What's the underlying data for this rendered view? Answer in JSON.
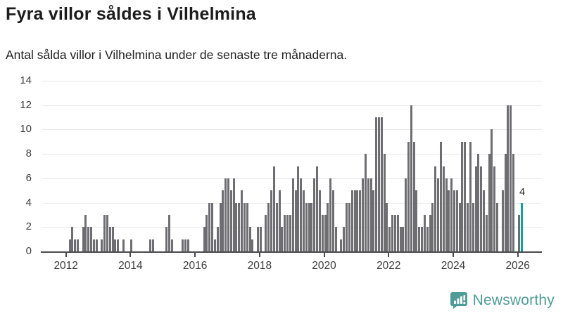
{
  "title": "Fyra villor såldes i Vilhelmina",
  "subtitle": "Antal sålda villor i Vilhelmina under de senaste tre månaderna.",
  "chart_data": {
    "type": "bar",
    "title": "Fyra villor såldes i Vilhelmina",
    "subtitle": "Antal sålda villor i Vilhelmina under de senaste tre månaderna.",
    "x_start": "2012-01",
    "x_end": "2026-02",
    "frequency": "monthly",
    "x_tick_labels": [
      "2012",
      "2014",
      "2016",
      "2018",
      "2020",
      "2022",
      "2024",
      "2026"
    ],
    "y_ticks": [
      0,
      2,
      4,
      6,
      8,
      10,
      12,
      14
    ],
    "ylim": [
      0,
      14
    ],
    "grid": "horizontal",
    "bar_color": "#6e6d72",
    "values": [
      0,
      1,
      2,
      1,
      1,
      0,
      2,
      3,
      2,
      2,
      1,
      1,
      0,
      1,
      3,
      3,
      2,
      2,
      1,
      1,
      0,
      1,
      0,
      0,
      1,
      0,
      0,
      0,
      0,
      0,
      0,
      1,
      1,
      0,
      0,
      0,
      0,
      2,
      3,
      1,
      0,
      0,
      0,
      1,
      1,
      1,
      0,
      0,
      0,
      0,
      0,
      2,
      3,
      4,
      4,
      1,
      2,
      4,
      5,
      6,
      6,
      5,
      6,
      4,
      4,
      5,
      4,
      4,
      2,
      1,
      0,
      2,
      2,
      0,
      3,
      4,
      5,
      7,
      4,
      5,
      2,
      3,
      3,
      3,
      6,
      5,
      7,
      6,
      5,
      4,
      4,
      4,
      6,
      7,
      5,
      3,
      3,
      4,
      6,
      5,
      2,
      0,
      1,
      2,
      4,
      4,
      5,
      5,
      5,
      5,
      6,
      8,
      6,
      6,
      5,
      11,
      11,
      11,
      8,
      4,
      2,
      3,
      3,
      3,
      2,
      2,
      6,
      9,
      12,
      9,
      5,
      2,
      2,
      3,
      2,
      3,
      4,
      7,
      6,
      9,
      7,
      6,
      5,
      6,
      5,
      5,
      4,
      9,
      9,
      4,
      9,
      4,
      7,
      8,
      7,
      5,
      3,
      8,
      10,
      7,
      4,
      0,
      5,
      8,
      12,
      12,
      8,
      0,
      3,
      4
    ],
    "highlight": {
      "index": 169,
      "value": 4,
      "label": "4",
      "color": "#0ba39d"
    }
  },
  "branding": {
    "name": "Newsworthy",
    "color": "#4d9d96",
    "icon": "newsworthy-bubble-chart-icon"
  }
}
